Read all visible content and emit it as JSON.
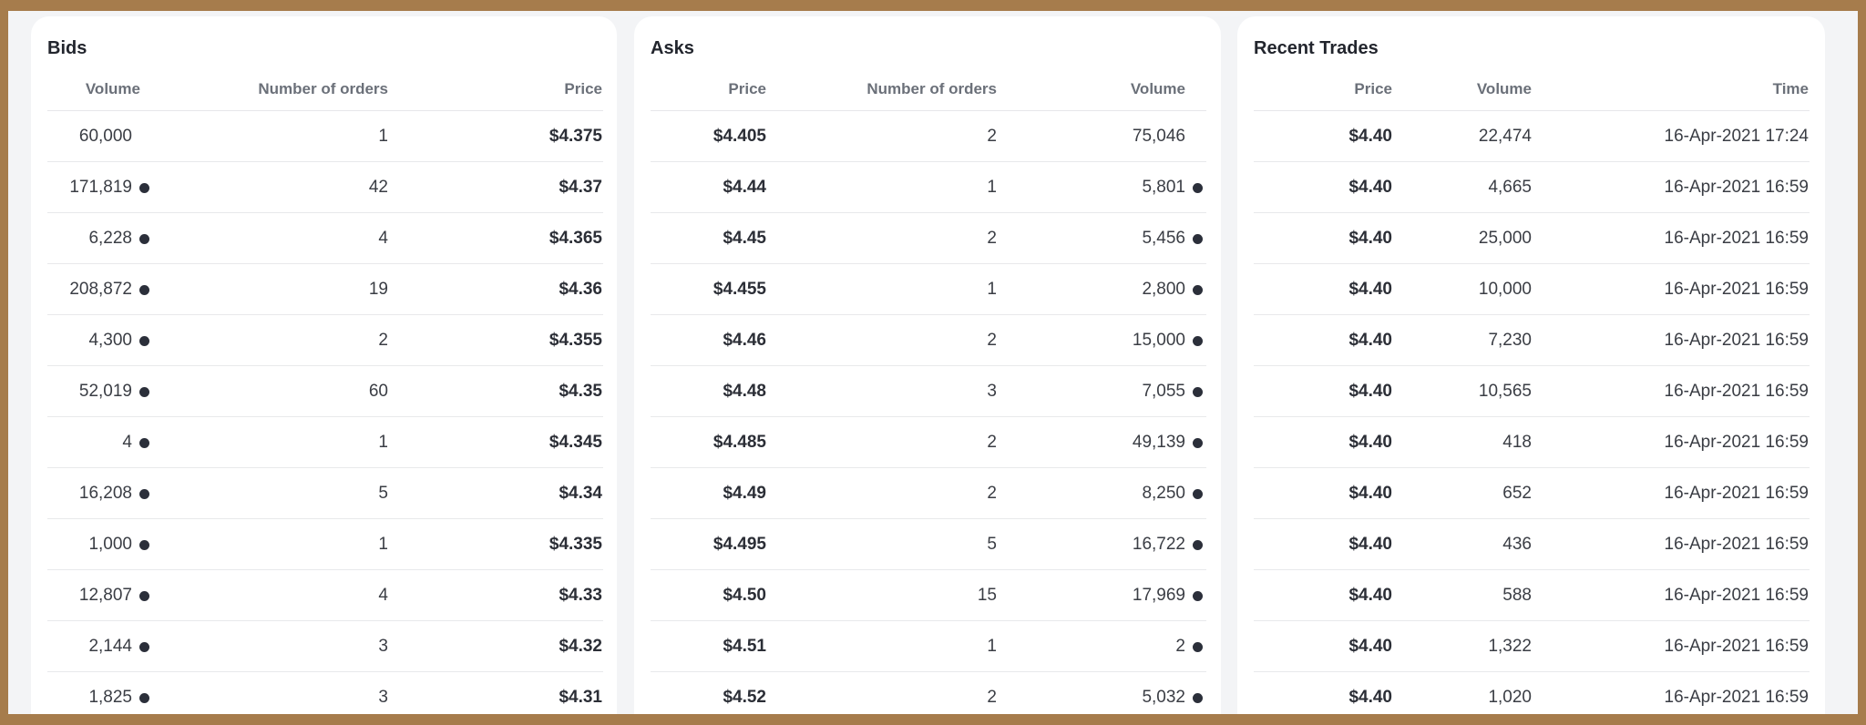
{
  "colors": {
    "frame": "#a67c4c",
    "background": "#f3f4f6",
    "dot": "#2b2f3a"
  },
  "bids": {
    "title": "Bids",
    "headers": [
      "Volume",
      "Number of orders",
      "Price"
    ],
    "rows": [
      {
        "volume": "60,000",
        "orders": "1",
        "price": "$4.375",
        "dot": false
      },
      {
        "volume": "171,819",
        "orders": "42",
        "price": "$4.37",
        "dot": true
      },
      {
        "volume": "6,228",
        "orders": "4",
        "price": "$4.365",
        "dot": true
      },
      {
        "volume": "208,872",
        "orders": "19",
        "price": "$4.36",
        "dot": true
      },
      {
        "volume": "4,300",
        "orders": "2",
        "price": "$4.355",
        "dot": true
      },
      {
        "volume": "52,019",
        "orders": "60",
        "price": "$4.35",
        "dot": true
      },
      {
        "volume": "4",
        "orders": "1",
        "price": "$4.345",
        "dot": true
      },
      {
        "volume": "16,208",
        "orders": "5",
        "price": "$4.34",
        "dot": true
      },
      {
        "volume": "1,000",
        "orders": "1",
        "price": "$4.335",
        "dot": true
      },
      {
        "volume": "12,807",
        "orders": "4",
        "price": "$4.33",
        "dot": true
      },
      {
        "volume": "2,144",
        "orders": "3",
        "price": "$4.32",
        "dot": true
      },
      {
        "volume": "1,825",
        "orders": "3",
        "price": "$4.31",
        "dot": true
      }
    ]
  },
  "asks": {
    "title": "Asks",
    "headers": [
      "Price",
      "Number of orders",
      "Volume"
    ],
    "rows": [
      {
        "price": "$4.405",
        "orders": "2",
        "volume": "75,046",
        "dot": false
      },
      {
        "price": "$4.44",
        "orders": "1",
        "volume": "5,801",
        "dot": true
      },
      {
        "price": "$4.45",
        "orders": "2",
        "volume": "5,456",
        "dot": true
      },
      {
        "price": "$4.455",
        "orders": "1",
        "volume": "2,800",
        "dot": true
      },
      {
        "price": "$4.46",
        "orders": "2",
        "volume": "15,000",
        "dot": true
      },
      {
        "price": "$4.48",
        "orders": "3",
        "volume": "7,055",
        "dot": true
      },
      {
        "price": "$4.485",
        "orders": "2",
        "volume": "49,139",
        "dot": true
      },
      {
        "price": "$4.49",
        "orders": "2",
        "volume": "8,250",
        "dot": true
      },
      {
        "price": "$4.495",
        "orders": "5",
        "volume": "16,722",
        "dot": true
      },
      {
        "price": "$4.50",
        "orders": "15",
        "volume": "17,969",
        "dot": true
      },
      {
        "price": "$4.51",
        "orders": "1",
        "volume": "2",
        "dot": true
      },
      {
        "price": "$4.52",
        "orders": "2",
        "volume": "5,032",
        "dot": true
      }
    ]
  },
  "trades": {
    "title": "Recent Trades",
    "headers": [
      "Price",
      "Volume",
      "Time"
    ],
    "rows": [
      {
        "price": "$4.40",
        "volume": "22,474",
        "time": "16-Apr-2021 17:24"
      },
      {
        "price": "$4.40",
        "volume": "4,665",
        "time": "16-Apr-2021 16:59"
      },
      {
        "price": "$4.40",
        "volume": "25,000",
        "time": "16-Apr-2021 16:59"
      },
      {
        "price": "$4.40",
        "volume": "10,000",
        "time": "16-Apr-2021 16:59"
      },
      {
        "price": "$4.40",
        "volume": "7,230",
        "time": "16-Apr-2021 16:59"
      },
      {
        "price": "$4.40",
        "volume": "10,565",
        "time": "16-Apr-2021 16:59"
      },
      {
        "price": "$4.40",
        "volume": "418",
        "time": "16-Apr-2021 16:59"
      },
      {
        "price": "$4.40",
        "volume": "652",
        "time": "16-Apr-2021 16:59"
      },
      {
        "price": "$4.40",
        "volume": "436",
        "time": "16-Apr-2021 16:59"
      },
      {
        "price": "$4.40",
        "volume": "588",
        "time": "16-Apr-2021 16:59"
      },
      {
        "price": "$4.40",
        "volume": "1,322",
        "time": "16-Apr-2021 16:59"
      },
      {
        "price": "$4.40",
        "volume": "1,020",
        "time": "16-Apr-2021 16:59"
      }
    ]
  }
}
